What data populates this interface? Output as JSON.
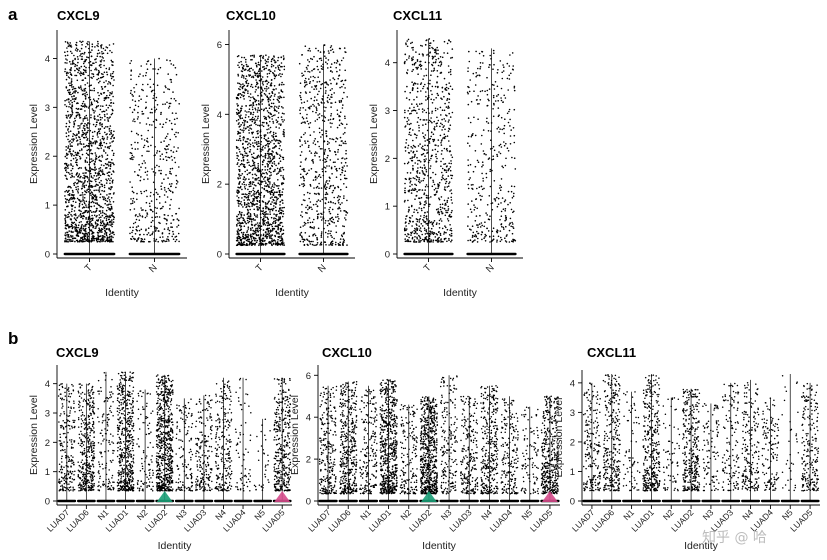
{
  "panels": [
    {
      "letter": "a"
    },
    {
      "letter": "b"
    }
  ],
  "watermark": "知乎 @ 哈",
  "chart_data": [
    {
      "type": "scatter",
      "title": "CXCL9",
      "xlabel": "Identity",
      "ylabel": "Expression Level",
      "categories": [
        "T",
        "N"
      ],
      "ylim": [
        0,
        4.5
      ],
      "yticks": [
        0,
        1,
        2,
        3,
        4
      ],
      "max": [
        4.35,
        4.0
      ],
      "density": [
        1.0,
        0.28
      ]
    },
    {
      "type": "scatter",
      "title": "CXCL10",
      "xlabel": "Identity",
      "ylabel": "Expression Level",
      "categories": [
        "T",
        "N"
      ],
      "ylim": [
        0,
        6.3
      ],
      "yticks": [
        0,
        2,
        4,
        6
      ],
      "max": [
        5.7,
        6.0
      ],
      "density": [
        1.0,
        0.42
      ]
    },
    {
      "type": "scatter",
      "title": "CXCL11",
      "xlabel": "Identity",
      "ylabel": "Expression Level",
      "categories": [
        "T",
        "N"
      ],
      "ylim": [
        0,
        4.6
      ],
      "yticks": [
        0,
        1,
        2,
        3,
        4
      ],
      "max": [
        4.5,
        4.3
      ],
      "density": [
        0.55,
        0.24
      ]
    },
    {
      "type": "scatter",
      "title": "CXCL9",
      "xlabel": "Identity",
      "ylabel": "Expression Level",
      "categories": [
        "LUAD7",
        "LUAD6",
        "N1",
        "LUAD1",
        "N2",
        "LUAD2",
        "N3",
        "LUAD3",
        "N4",
        "LUAD4",
        "N5",
        "LUAD5"
      ],
      "ylim": [
        0,
        4.5
      ],
      "yticks": [
        0,
        1,
        2,
        3,
        4
      ],
      "max": [
        4.0,
        4.0,
        4.4,
        4.4,
        3.8,
        4.3,
        3.5,
        3.6,
        4.2,
        4.2,
        2.8,
        4.2
      ],
      "density": [
        0.35,
        0.6,
        0.2,
        0.8,
        0.15,
        1.0,
        0.2,
        0.3,
        0.35,
        0.1,
        0.05,
        0.55
      ],
      "highlight": [
        {
          "category": "LUAD2",
          "color": "#1a9e77"
        },
        {
          "category": "LUAD5",
          "color": "#d64b8c"
        }
      ]
    },
    {
      "type": "scatter",
      "title": "CXCL10",
      "xlabel": "Identity",
      "ylabel": "Expression Level",
      "categories": [
        "LUAD7",
        "LUAD6",
        "N1",
        "LUAD1",
        "N2",
        "LUAD2",
        "N3",
        "LUAD3",
        "N4",
        "LUAD4",
        "N5",
        "LUAD5"
      ],
      "ylim": [
        0,
        6.3
      ],
      "yticks": [
        0,
        2,
        4,
        6
      ],
      "max": [
        5.5,
        5.7,
        5.5,
        5.8,
        4.6,
        5.0,
        6.0,
        5.0,
        5.5,
        5.0,
        4.5,
        5.0
      ],
      "density": [
        0.4,
        0.65,
        0.3,
        0.95,
        0.25,
        1.0,
        0.3,
        0.35,
        0.5,
        0.3,
        0.15,
        0.6
      ],
      "highlight": [
        {
          "category": "LUAD2",
          "color": "#1a9e77"
        },
        {
          "category": "LUAD5",
          "color": "#d64b8c"
        }
      ]
    },
    {
      "type": "scatter",
      "title": "CXCL11",
      "xlabel": "Identity",
      "ylabel": "Expression Level",
      "categories": [
        "LUAD7",
        "LUAD6",
        "N1",
        "LUAD1",
        "N2",
        "LUAD2",
        "N3",
        "LUAD3",
        "N4",
        "LUAD4",
        "N5",
        "LUAD5"
      ],
      "ylim": [
        0,
        4.3
      ],
      "yticks": [
        0,
        1,
        2,
        3,
        4
      ],
      "max": [
        4.0,
        4.3,
        3.7,
        4.3,
        3.5,
        3.8,
        3.3,
        4.0,
        4.1,
        3.5,
        4.3,
        4.0
      ],
      "density": [
        0.3,
        0.45,
        0.1,
        0.55,
        0.1,
        0.5,
        0.15,
        0.2,
        0.3,
        0.2,
        0.05,
        0.35
      ]
    }
  ]
}
